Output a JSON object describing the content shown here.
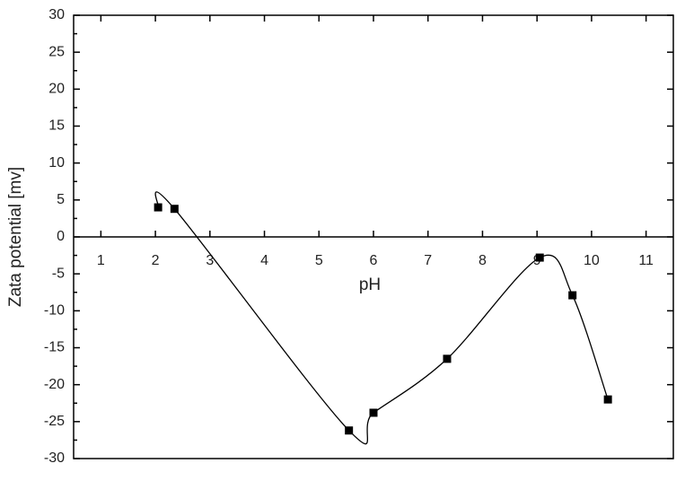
{
  "chart_data": {
    "type": "line",
    "x_label": "pH",
    "y_label": "Zata potential [mv]",
    "x": [
      2.05,
      2.35,
      5.55,
      6.0,
      7.35,
      9.05,
      9.65,
      10.3
    ],
    "values": [
      4.0,
      3.8,
      -26.2,
      -23.8,
      -16.5,
      -2.8,
      -7.9,
      -22.0
    ],
    "color": "#000000",
    "xlim": [
      0.5,
      11.5
    ],
    "xticks": [
      1,
      2,
      3,
      4,
      5,
      6,
      7,
      8,
      9,
      10,
      11
    ],
    "ylim": [
      -30,
      30
    ],
    "yticks": [
      -30,
      -25,
      -20,
      -15,
      -10,
      -5,
      0,
      5,
      10,
      15,
      20,
      25,
      30
    ],
    "grid": false
  }
}
